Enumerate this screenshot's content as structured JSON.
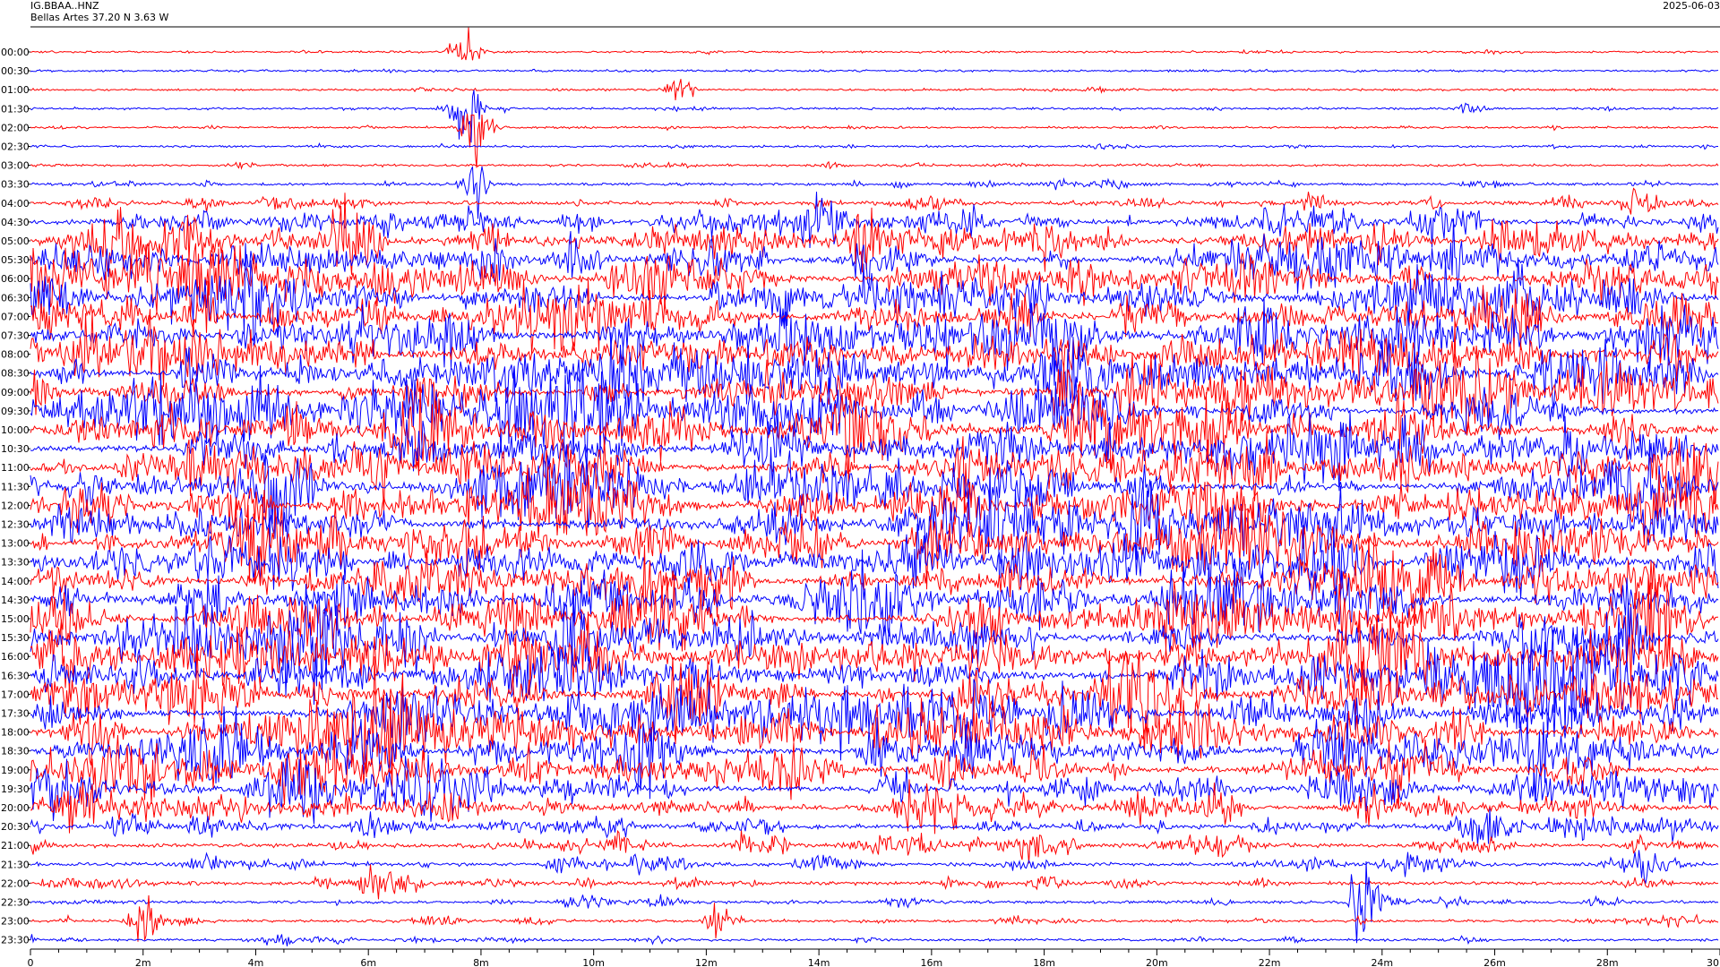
{
  "header": {
    "station": "IG.BBAA..HNZ",
    "location": "Bellas Artes  37.20 N 3.63 W",
    "date": "2025-06-03"
  },
  "chart_data": {
    "type": "line",
    "title": "IG.BBAA..HNZ",
    "subtitle": "Bellas Artes  37.20 N 3.63 W",
    "date": "2025-06-03",
    "row_labels": [
      "00:00",
      "00:30",
      "01:00",
      "01:30",
      "02:00",
      "02:30",
      "03:00",
      "03:30",
      "04:00",
      "04:30",
      "05:00",
      "05:30",
      "06:00",
      "06:30",
      "07:00",
      "07:30",
      "08:00",
      "08:30",
      "09:00",
      "09:30",
      "10:00",
      "10:30",
      "11:00",
      "11:30",
      "12:00",
      "12:30",
      "13:00",
      "13:30",
      "14:00",
      "14:30",
      "15:00",
      "15:30",
      "16:00",
      "16:30",
      "17:00",
      "17:30",
      "18:00",
      "18:30",
      "19:00",
      "19:30",
      "20:00",
      "20:30",
      "21:00",
      "21:30",
      "22:00",
      "22:30",
      "23:00",
      "23:30"
    ],
    "x_tick_labels": [
      "0",
      "2m",
      "4m",
      "6m",
      "8m",
      "10m",
      "12m",
      "14m",
      "16m",
      "18m",
      "20m",
      "22m",
      "24m",
      "26m",
      "28m",
      "30"
    ],
    "x_ticks_minutes": [
      0,
      2,
      4,
      6,
      8,
      10,
      12,
      14,
      16,
      18,
      20,
      22,
      24,
      26,
      28,
      30
    ],
    "xlim_minutes": [
      0,
      30
    ],
    "series_colors": [
      "#ff0000",
      "#0000ff"
    ],
    "activity_relative": [
      0.08,
      0.08,
      0.1,
      0.12,
      0.1,
      0.12,
      0.15,
      0.25,
      0.4,
      0.7,
      0.9,
      0.9,
      0.95,
      0.95,
      1.0,
      1.0,
      1.0,
      1.0,
      1.0,
      1.0,
      1.0,
      1.0,
      1.0,
      1.0,
      1.0,
      1.0,
      1.0,
      1.0,
      1.0,
      1.0,
      1.0,
      1.0,
      1.0,
      1.0,
      1.0,
      1.0,
      0.95,
      0.95,
      0.9,
      0.85,
      0.75,
      0.6,
      0.5,
      0.45,
      0.4,
      0.3,
      0.25,
      0.2
    ],
    "events": [
      {
        "row": "00:00",
        "minute": 7.7,
        "relative_amplitude": 1.4
      },
      {
        "row": "01:00",
        "minute": 11.5,
        "relative_amplitude": 0.9
      },
      {
        "row": "01:30",
        "minute": 7.7,
        "relative_amplitude": 2.2
      },
      {
        "row": "02:00",
        "minute": 7.9,
        "relative_amplitude": 3.0
      },
      {
        "row": "03:30",
        "minute": 7.9,
        "relative_amplitude": 1.5
      },
      {
        "row": "04:00",
        "minute": 28.6,
        "relative_amplitude": 1.1
      },
      {
        "row": "22:30",
        "minute": 23.7,
        "relative_amplitude": 3.5
      },
      {
        "row": "23:00",
        "minute": 2.0,
        "relative_amplitude": 2.0
      },
      {
        "row": "23:00",
        "minute": 12.3,
        "relative_amplitude": 1.5
      }
    ]
  }
}
